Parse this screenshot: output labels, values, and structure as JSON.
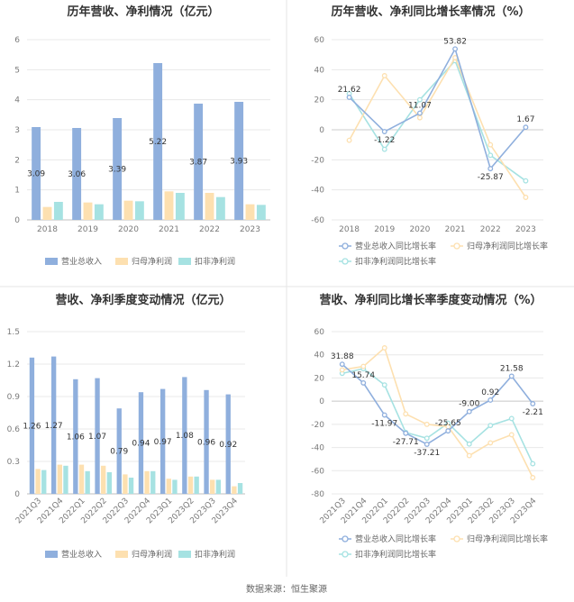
{
  "source_label": "数据来源：恒生聚源",
  "colors": {
    "s1": "#8fafdd",
    "s2": "#fde0b0",
    "s3": "#a6e2e2",
    "grid": "#e8e8e8",
    "axis": "#bfbfbf",
    "divider": "#e6e6e6"
  },
  "chart_data": [
    {
      "type": "bar",
      "title": "历年营收、净利情况（亿元）",
      "categories": [
        "2018",
        "2019",
        "2020",
        "2021",
        "2022",
        "2023"
      ],
      "ylim": [
        0,
        6
      ],
      "yticks": [
        "0",
        "1",
        "2",
        "3",
        "4",
        "5",
        "6"
      ],
      "series": [
        {
          "name": "营业总收入",
          "values": [
            3.09,
            3.06,
            3.39,
            5.22,
            3.87,
            3.93
          ],
          "labels": [
            "3.09",
            "3.06",
            "3.39",
            "5.22",
            "3.87",
            "3.93"
          ]
        },
        {
          "name": "归母净利润",
          "values": [
            0.43,
            0.58,
            0.64,
            0.95,
            0.9,
            0.52
          ]
        },
        {
          "name": "扣非净利润",
          "values": [
            0.6,
            0.52,
            0.62,
            0.9,
            0.76,
            0.5
          ]
        }
      ]
    },
    {
      "type": "line",
      "title": "历年营收、净利同比增长率情况（%）",
      "categories": [
        "2018",
        "2019",
        "2020",
        "2021",
        "2022",
        "2023"
      ],
      "ylim": [
        -60,
        60
      ],
      "yticks": [
        "60",
        "40",
        "20",
        "0",
        "-20",
        "-40",
        "-60"
      ],
      "series": [
        {
          "name": "营业总收入同比增长率",
          "values": [
            21.62,
            -1.22,
            11.07,
            53.82,
            -25.87,
            1.67
          ],
          "labels": [
            "21.62",
            "-1.22",
            "11.07",
            "53.82",
            "-25.87",
            "1.67"
          ]
        },
        {
          "name": "归母净利润同比增长率",
          "values": [
            -7,
            36,
            8,
            48,
            -10,
            -45
          ]
        },
        {
          "name": "扣非净利润同比增长率",
          "values": [
            24,
            -13,
            20,
            46,
            -17,
            -34
          ]
        }
      ]
    },
    {
      "type": "bar",
      "title": "营收、净利季度变动情况（亿元）",
      "categories": [
        "2021Q3",
        "2021Q4",
        "2022Q1",
        "2022Q2",
        "2022Q3",
        "2022Q4",
        "2023Q1",
        "2023Q2",
        "2023Q3",
        "2023Q4"
      ],
      "ylim": [
        0,
        1.5
      ],
      "yticks": [
        "0",
        "0.3",
        "0.6",
        "0.9",
        "1.2",
        "1.5"
      ],
      "series": [
        {
          "name": "营业总收入",
          "values": [
            1.26,
            1.27,
            1.06,
            1.07,
            0.79,
            0.94,
            0.97,
            1.08,
            0.96,
            0.92
          ],
          "labels": [
            "1.26",
            "1.27",
            "1.06",
            "1.07",
            "0.79",
            "0.94",
            "0.97",
            "1.08",
            "0.96",
            "0.92"
          ]
        },
        {
          "name": "归母净利润",
          "values": [
            0.23,
            0.27,
            0.27,
            0.26,
            0.18,
            0.21,
            0.14,
            0.16,
            0.13,
            0.07
          ]
        },
        {
          "name": "扣非净利润",
          "values": [
            0.22,
            0.26,
            0.21,
            0.2,
            0.15,
            0.21,
            0.13,
            0.16,
            0.13,
            0.1
          ]
        }
      ]
    },
    {
      "type": "line",
      "title": "营收、净利同比增长率季度变动情况（%）",
      "categories": [
        "2021Q3",
        "2021Q4",
        "2022Q1",
        "2022Q2",
        "2022Q3",
        "2022Q4",
        "2023Q1",
        "2023Q2",
        "2023Q3",
        "2023Q4"
      ],
      "ylim": [
        -80,
        60
      ],
      "yticks": [
        "60",
        "40",
        "20",
        "0",
        "-20",
        "-40",
        "-60",
        "-80"
      ],
      "series": [
        {
          "name": "营业总收入同比增长率",
          "values": [
            31.88,
            15.74,
            -11.97,
            -27.71,
            -37.21,
            -25.65,
            -9.0,
            0.92,
            21.58,
            -2.21
          ],
          "labels": [
            "31.88",
            "15.74",
            "-11.97",
            "-27.71",
            "-37.21",
            "-25.65",
            "-9.00",
            "0.92",
            "21.58",
            "-2.21"
          ]
        },
        {
          "name": "归母净利润同比增长率",
          "values": [
            27,
            30,
            46,
            -11,
            -20,
            -22,
            -47,
            -36,
            -29,
            -66
          ]
        },
        {
          "name": "扣非净利润同比增长率",
          "values": [
            24,
            28,
            14,
            -27,
            -32,
            -19,
            -37,
            -21,
            -15,
            -54
          ]
        }
      ]
    }
  ]
}
